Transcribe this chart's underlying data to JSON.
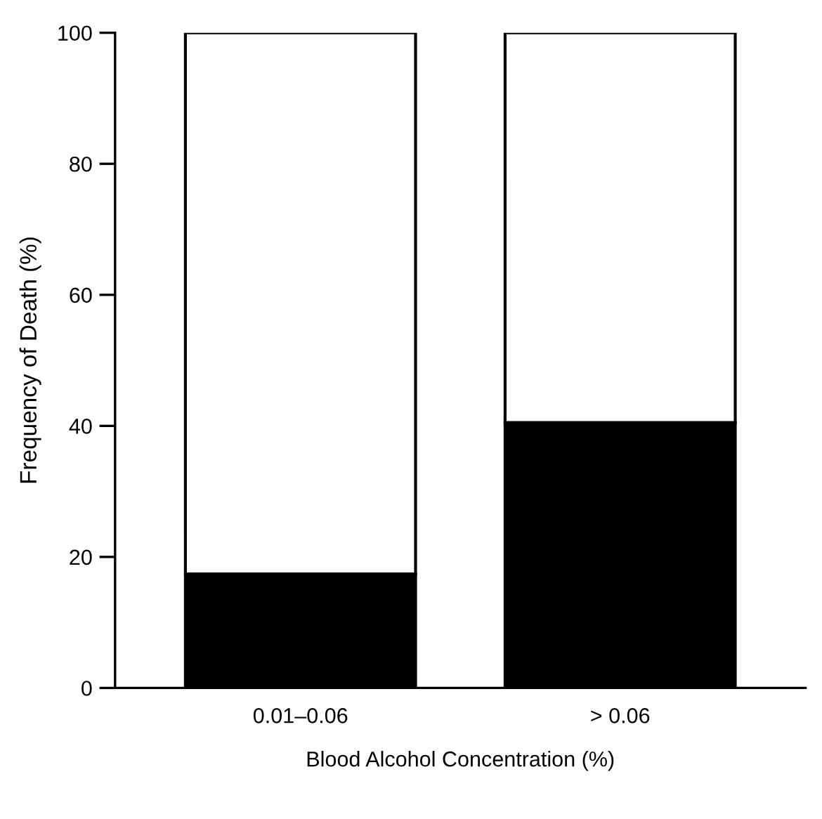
{
  "chart_data": {
    "type": "bar",
    "stacked": true,
    "xlabel": "Blood Alcohol Concentration (%)",
    "ylabel": "Frequency of Death (%)",
    "categories": [
      "0.01–0.06",
      "> 0.06"
    ],
    "series": [
      {
        "color": "#000000",
        "values": [
          17.4,
          40.5
        ]
      },
      {
        "color": "#ffffff",
        "values": [
          82.6,
          59.5
        ]
      }
    ],
    "ylim": [
      0,
      100
    ],
    "yticks": [
      0,
      20,
      40,
      60,
      80,
      100
    ],
    "grid": false
  }
}
